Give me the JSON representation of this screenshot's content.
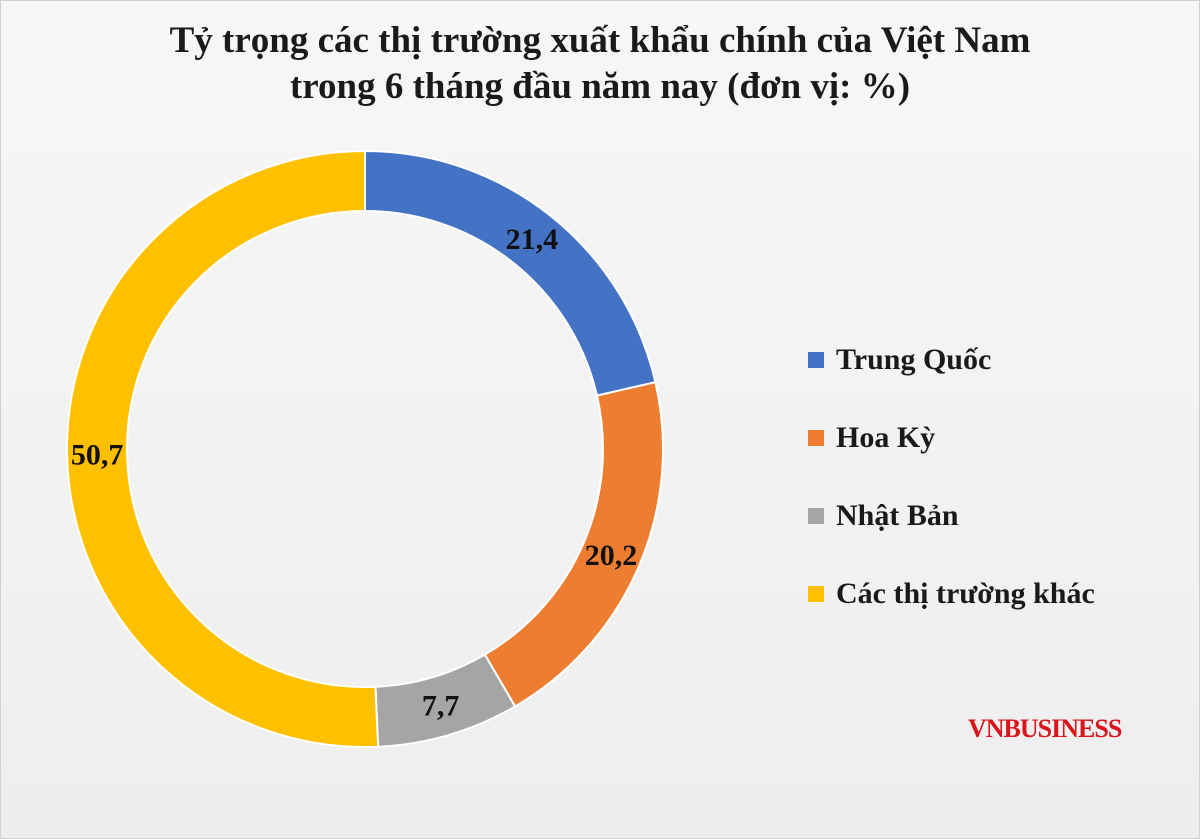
{
  "title_lines": [
    "Tỷ trọng các thị trường xuất khẩu chính của Việt Nam",
    "trong 6 tháng đầu năm nay (đơn vị: %)"
  ],
  "brand": "VNBUSINESS",
  "chart_data": {
    "type": "pie",
    "style": "donut",
    "title": "Tỷ trọng các thị trường xuất khẩu chính của Việt Nam trong 6 tháng đầu năm nay (đơn vị: %)",
    "unit": "%",
    "legend_position": "right",
    "categories": [
      "Trung Quốc",
      "Hoa Kỳ",
      "Nhật Bản",
      "Các thị trường khác"
    ],
    "values": [
      21.4,
      20.2,
      7.7,
      50.7
    ],
    "value_labels": [
      "21,4",
      "20,2",
      "7,7",
      "50,7"
    ],
    "colors": [
      "#4472c4",
      "#ed7d31",
      "#a5a5a5",
      "#ffc000"
    ]
  }
}
